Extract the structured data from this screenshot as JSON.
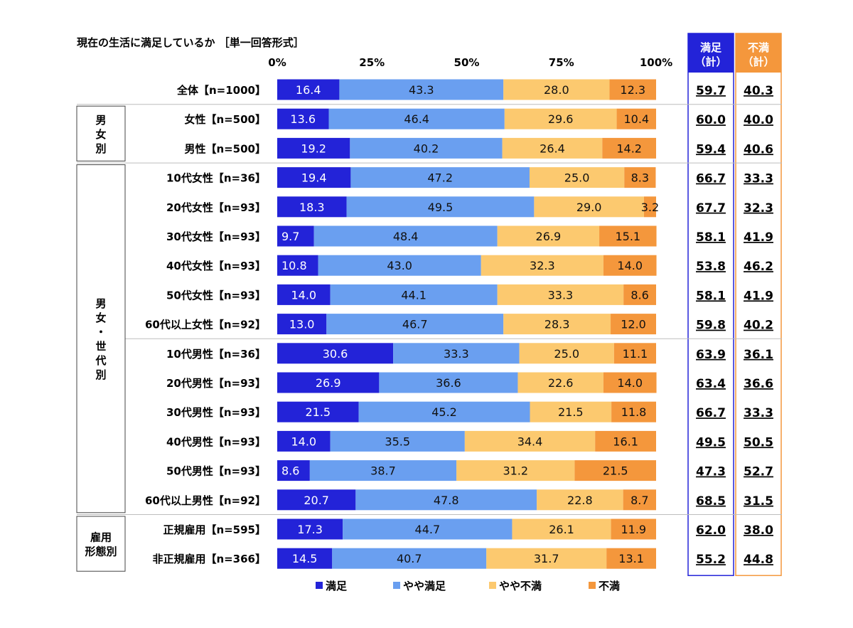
{
  "chart_data": {
    "type": "bar",
    "orientation": "horizontal",
    "stacked": true,
    "title": "現在の生活に満足しているか ［単一回答形式］",
    "x_ticks": [
      "0%",
      "25%",
      "50%",
      "75%",
      "100%"
    ],
    "xlim": [
      0,
      100
    ],
    "series": [
      {
        "name": "満足",
        "color": "#2323d8"
      },
      {
        "name": "やや満足",
        "color": "#6a9ff0"
      },
      {
        "name": "やや不満",
        "color": "#fcc96f"
      },
      {
        "name": "不満",
        "color": "#f4973c"
      }
    ],
    "summary_columns": [
      {
        "header": [
          "満足",
          "（計）"
        ],
        "color": "#2323d8"
      },
      {
        "header": [
          "不満",
          "（計）"
        ],
        "color": "#f4973c"
      }
    ],
    "rows": [
      {
        "label": "全体【n=1000】",
        "values": [
          16.4,
          43.3,
          28.0,
          12.3
        ],
        "labels": [
          "16.4",
          "43.3",
          "28.0",
          "12.3"
        ],
        "sums": [
          "59.7",
          "40.3"
        ]
      },
      {
        "label": "女性【n=500】",
        "values": [
          13.6,
          46.4,
          29.6,
          10.4
        ],
        "labels": [
          "13.6",
          "46.4",
          "29.6",
          "10.4"
        ],
        "sums": [
          "60.0",
          "40.0"
        ]
      },
      {
        "label": "男性【n=500】",
        "values": [
          19.2,
          40.2,
          26.4,
          14.2
        ],
        "labels": [
          "19.2",
          "40.2",
          "26.4",
          "14.2"
        ],
        "sums": [
          "59.4",
          "40.6"
        ]
      },
      {
        "label": "10代女性【n=36】",
        "values": [
          19.4,
          47.2,
          25.0,
          8.3
        ],
        "labels": [
          "19.4",
          "47.2",
          "25.0",
          "8.3"
        ],
        "sums": [
          "66.7",
          "33.3"
        ]
      },
      {
        "label": "20代女性【n=93】",
        "values": [
          18.3,
          49.5,
          29.0,
          3.2
        ],
        "labels": [
          "18.3",
          "49.5",
          "29.0",
          "3.2"
        ],
        "sums": [
          "67.7",
          "32.3"
        ]
      },
      {
        "label": "30代女性【n=93】",
        "values": [
          9.7,
          48.4,
          26.9,
          15.1
        ],
        "labels": [
          "9.7",
          "48.4",
          "26.9",
          "15.1"
        ],
        "sums": [
          "58.1",
          "41.9"
        ]
      },
      {
        "label": "40代女性【n=93】",
        "values": [
          10.8,
          43.0,
          32.3,
          14.0
        ],
        "labels": [
          "10.8",
          "43.0",
          "32.3",
          "14.0"
        ],
        "sums": [
          "53.8",
          "46.2"
        ]
      },
      {
        "label": "50代女性【n=93】",
        "values": [
          14.0,
          44.1,
          33.3,
          8.6
        ],
        "labels": [
          "14.0",
          "44.1",
          "33.3",
          "8.6"
        ],
        "sums": [
          "58.1",
          "41.9"
        ]
      },
      {
        "label": "60代以上女性【n=92】",
        "values": [
          13.0,
          46.7,
          28.3,
          12.0
        ],
        "labels": [
          "13.0",
          "46.7",
          "28.3",
          "12.0"
        ],
        "sums": [
          "59.8",
          "40.2"
        ]
      },
      {
        "label": "10代男性【n=36】",
        "values": [
          30.6,
          33.3,
          25.0,
          11.1
        ],
        "labels": [
          "30.6",
          "33.3",
          "25.0",
          "11.1"
        ],
        "sums": [
          "63.9",
          "36.1"
        ]
      },
      {
        "label": "20代男性【n=93】",
        "values": [
          26.9,
          36.6,
          22.6,
          14.0
        ],
        "labels": [
          "26.9",
          "36.6",
          "22.6",
          "14.0"
        ],
        "sums": [
          "63.4",
          "36.6"
        ]
      },
      {
        "label": "30代男性【n=93】",
        "values": [
          21.5,
          45.2,
          21.5,
          11.8
        ],
        "labels": [
          "21.5",
          "45.2",
          "21.5",
          "11.8"
        ],
        "sums": [
          "66.7",
          "33.3"
        ]
      },
      {
        "label": "40代男性【n=93】",
        "values": [
          14.0,
          35.5,
          34.4,
          16.1
        ],
        "labels": [
          "14.0",
          "35.5",
          "34.4",
          "16.1"
        ],
        "sums": [
          "49.5",
          "50.5"
        ]
      },
      {
        "label": "50代男性【n=93】",
        "values": [
          8.6,
          38.7,
          31.2,
          21.5
        ],
        "labels": [
          "8.6",
          "38.7",
          "31.2",
          "21.5"
        ],
        "sums": [
          "47.3",
          "52.7"
        ]
      },
      {
        "label": "60代以上男性【n=92】",
        "values": [
          20.7,
          47.8,
          22.8,
          8.7
        ],
        "labels": [
          "20.7",
          "47.8",
          "22.8",
          "8.7"
        ],
        "sums": [
          "68.5",
          "31.5"
        ]
      },
      {
        "label": "正規雇用【n=595】",
        "values": [
          17.3,
          44.7,
          26.1,
          11.9
        ],
        "labels": [
          "17.3",
          "44.7",
          "26.1",
          "11.9"
        ],
        "sums": [
          "62.0",
          "38.0"
        ]
      },
      {
        "label": "非正規雇用【n=366】",
        "values": [
          14.5,
          40.7,
          31.7,
          13.1
        ],
        "labels": [
          "14.5",
          "40.7",
          "31.7",
          "13.1"
        ],
        "sums": [
          "55.2",
          "44.8"
        ]
      }
    ],
    "groups": [
      {
        "label": [
          "男",
          "女",
          "別"
        ],
        "first_row": 1,
        "last_row": 2
      },
      {
        "label": [
          "男",
          "女",
          "・",
          "世",
          "代",
          "別"
        ],
        "first_row": 3,
        "last_row": 14
      },
      {
        "label": [
          "雇用",
          "形態別"
        ],
        "first_row": 15,
        "last_row": 16
      }
    ],
    "legend_position": "bottom",
    "grid": false
  }
}
